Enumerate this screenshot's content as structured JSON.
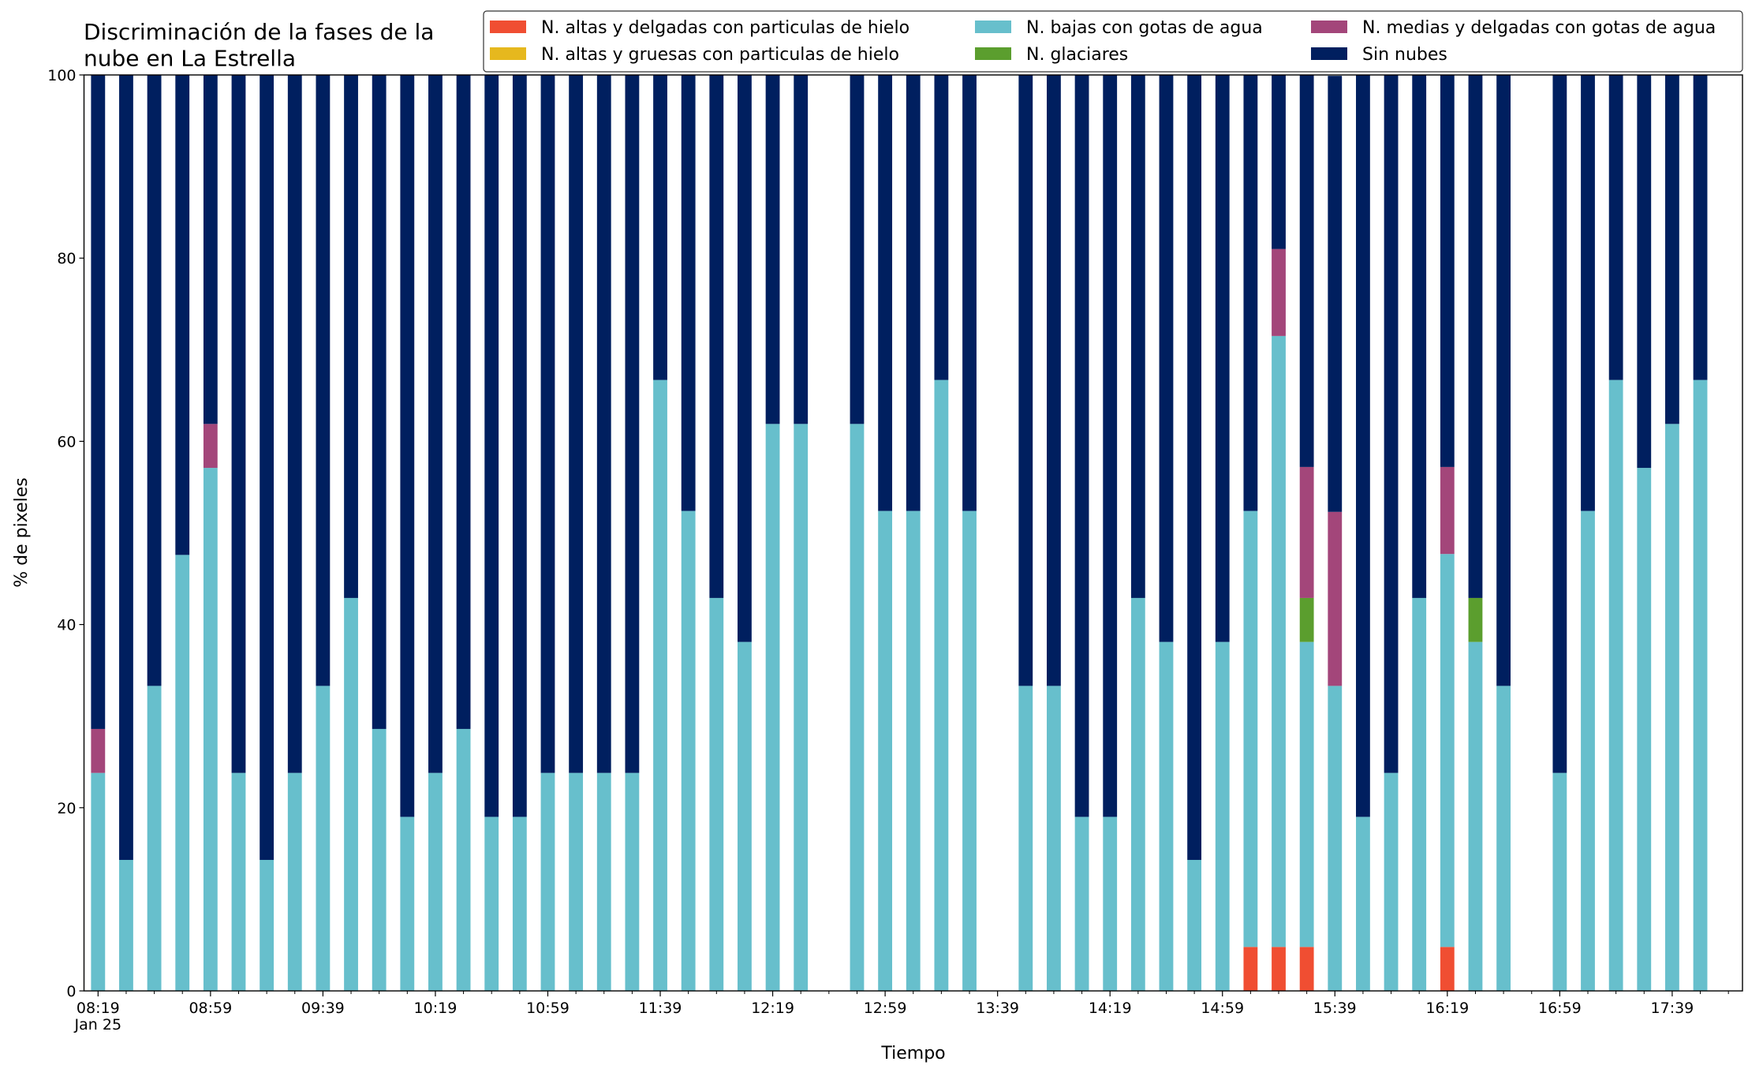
{
  "chart_data": {
    "type": "stacked_bar",
    "title": "Discriminación de la fases de la\nnube en La Estrella",
    "xlabel": "Tiempo",
    "ylabel": "% de pixeles",
    "x": [
      "08:19",
      "08:29",
      "08:39",
      "08:49",
      "08:59",
      "09:09",
      "09:19",
      "09:29",
      "09:39",
      "09:49",
      "09:59",
      "10:09",
      "10:19",
      "10:29",
      "10:39",
      "10:49",
      "10:59",
      "11:09",
      "11:19",
      "11:29",
      "11:39",
      "11:49",
      "11:59",
      "12:09",
      "12:19",
      "12:29",
      "12:49",
      "12:59",
      "13:09",
      "13:19",
      "13:29",
      "13:49",
      "13:59",
      "14:09",
      "14:19",
      "14:29",
      "14:39",
      "14:49",
      "14:59",
      "15:09",
      "15:19",
      "15:29",
      "15:39",
      "15:49",
      "15:59",
      "16:09",
      "16:19",
      "16:29",
      "16:39",
      "16:59",
      "17:09",
      "17:19",
      "17:29",
      "17:39",
      "17:49"
    ],
    "series": [
      {
        "name": "N. altas y delgadas con particulas de hielo",
        "color": "#f04e32",
        "values": [
          0,
          0,
          0,
          0,
          0,
          0,
          0,
          0,
          0,
          0,
          0,
          0,
          0,
          0,
          0,
          0,
          0,
          0,
          0,
          0,
          0,
          0,
          0,
          0,
          0,
          0,
          0,
          0,
          0,
          0,
          0,
          0,
          0,
          0,
          0,
          0,
          0,
          0,
          0,
          4.8,
          4.8,
          4.8,
          0,
          0,
          0,
          0,
          4.8,
          0,
          0,
          0,
          0,
          0,
          0,
          0,
          0
        ]
      },
      {
        "name": "N. altas y gruesas con particulas de hielo",
        "color": "#e6b81e",
        "values": [
          0,
          0,
          0,
          0,
          0,
          0,
          0,
          0,
          0,
          0,
          0,
          0,
          0,
          0,
          0,
          0,
          0,
          0,
          0,
          0,
          0,
          0,
          0,
          0,
          0,
          0,
          0,
          0,
          0,
          0,
          0,
          0,
          0,
          0,
          0,
          0,
          0,
          0,
          0,
          0,
          0,
          0,
          0,
          0,
          0,
          0,
          0,
          0,
          0,
          0,
          0,
          0,
          0,
          0,
          0
        ]
      },
      {
        "name": "N. bajas con gotas de agua",
        "color": "#67bfcc",
        "values": [
          23.8,
          14.3,
          33.3,
          47.6,
          57.1,
          23.8,
          14.3,
          23.8,
          33.3,
          42.9,
          28.6,
          19.0,
          23.8,
          28.6,
          19.0,
          19.0,
          23.8,
          23.8,
          23.8,
          23.8,
          66.7,
          52.4,
          42.9,
          38.1,
          61.9,
          61.9,
          61.9,
          52.4,
          52.4,
          66.7,
          52.4,
          33.3,
          33.3,
          19.0,
          19.0,
          42.9,
          38.1,
          14.3,
          38.1,
          47.6,
          66.7,
          33.3,
          33.3,
          19.0,
          23.8,
          42.9,
          42.9,
          38.1,
          33.3,
          23.8,
          52.4,
          66.7,
          57.1,
          61.9,
          66.7
        ]
      },
      {
        "name": "N. glaciares",
        "color": "#5b9e2e",
        "values": [
          0,
          0,
          0,
          0,
          0,
          0,
          0,
          0,
          0,
          0,
          0,
          0,
          0,
          0,
          0,
          0,
          0,
          0,
          0,
          0,
          0,
          0,
          0,
          0,
          0,
          0,
          0,
          0,
          0,
          0,
          0,
          0,
          0,
          0,
          0,
          0,
          0,
          0,
          0,
          0,
          0,
          4.8,
          0,
          0,
          0,
          0,
          0,
          4.8,
          0,
          0,
          0,
          0,
          0,
          0,
          0
        ]
      },
      {
        "name": "N. medias y delgadas con gotas de agua",
        "color": "#a3467a",
        "values": [
          4.8,
          0,
          0,
          0,
          4.8,
          0,
          0,
          0,
          0,
          0,
          0,
          0,
          0,
          0,
          0,
          0,
          0,
          0,
          0,
          0,
          0,
          0,
          0,
          0,
          0,
          0,
          0,
          0,
          0,
          0,
          0,
          0,
          0,
          0,
          0,
          0,
          0,
          0,
          0,
          0,
          9.5,
          14.3,
          19.0,
          0,
          0,
          0,
          9.5,
          0,
          0,
          0,
          0,
          0,
          0,
          0,
          0
        ]
      },
      {
        "name": "Sin nubes",
        "color": "#001f5f",
        "values": [
          71.4,
          85.7,
          66.7,
          52.4,
          38.1,
          76.2,
          85.7,
          76.2,
          66.7,
          57.1,
          71.4,
          81.0,
          76.2,
          71.4,
          81.0,
          81.0,
          76.2,
          76.2,
          76.2,
          76.2,
          33.3,
          47.6,
          57.1,
          61.9,
          38.1,
          38.1,
          38.1,
          47.6,
          47.6,
          33.3,
          47.6,
          66.7,
          66.7,
          81.0,
          81.0,
          57.1,
          61.9,
          85.7,
          61.9,
          47.6,
          19.0,
          42.8,
          47.6,
          81.0,
          76.2,
          57.1,
          42.8,
          57.1,
          66.7,
          76.2,
          47.6,
          33.3,
          42.9,
          38.1,
          33.3
        ]
      }
    ],
    "xlim": [
      "08:14",
      "18:04"
    ],
    "xticks": [
      {
        "value": "08:19",
        "label": "08:19\nJan 25"
      },
      "08:59",
      "09:39",
      "10:19",
      "10:59",
      "11:39",
      "12:19",
      "12:59",
      "13:39",
      "14:19",
      "14:59",
      "15:39",
      "16:19",
      "16:59",
      "17:39"
    ],
    "xminorticks": [
      "08:29",
      "08:39",
      "08:49",
      "09:09",
      "09:19",
      "09:29",
      "09:49",
      "09:59",
      "10:09",
      "10:29",
      "10:39",
      "10:49",
      "11:09",
      "11:19",
      "11:29",
      "11:49",
      "11:59",
      "12:09",
      "12:29",
      "12:39",
      "12:49",
      "13:09",
      "13:19",
      "13:29",
      "13:49",
      "13:59",
      "14:09",
      "14:29",
      "14:39",
      "14:49",
      "15:09",
      "15:19",
      "15:29",
      "15:49",
      "15:59",
      "16:09",
      "16:29",
      "16:39",
      "16:49",
      "17:09",
      "17:19",
      "17:29",
      "17:49",
      "17:59"
    ],
    "ylim": [
      0,
      100
    ],
    "yticks": [
      0,
      20,
      40,
      60,
      80,
      100
    ],
    "legend": "upper right",
    "grid": false
  }
}
